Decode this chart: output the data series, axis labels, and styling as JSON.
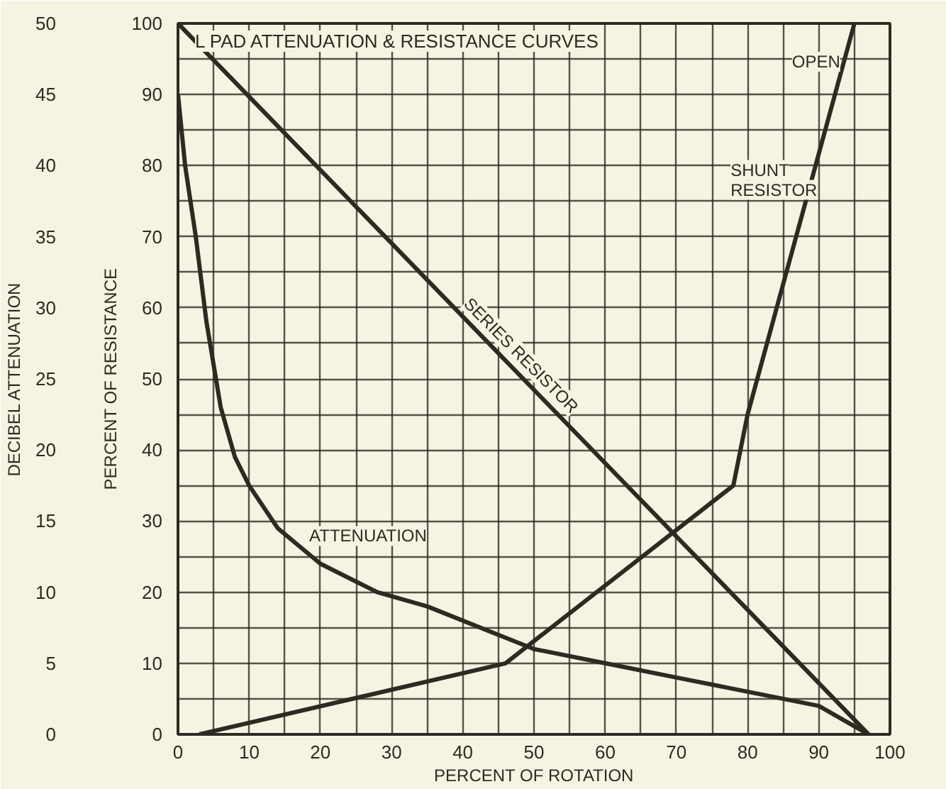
{
  "chart_data": {
    "type": "line",
    "title": "L PAD ATTENUATION & RESISTANCE CURVES",
    "xlabel": "PERCENT OF ROTATION",
    "ylabel": "PERCENT OF RESISTANCE",
    "y2label": "DECIBEL ATTENUATION",
    "xlim": [
      0,
      100
    ],
    "ylim": [
      0,
      100
    ],
    "y2lim": [
      0,
      50
    ],
    "xticks": [
      0,
      {
        "value": 5,
        "label": null
      },
      10,
      {
        "value": 15,
        "label": null
      },
      20,
      {
        "value": 25,
        "label": null
      },
      30,
      {
        "value": 35,
        "label": null
      },
      40,
      {
        "value": 45,
        "label": null
      },
      50,
      {
        "value": 55,
        "label": null
      },
      60,
      {
        "value": 65,
        "label": null
      },
      70,
      {
        "value": 75,
        "label": null
      },
      80,
      {
        "value": 85,
        "label": null
      },
      90,
      {
        "value": 95,
        "label": null
      },
      100
    ],
    "yticks": [
      0,
      {
        "value": 5,
        "label": null
      },
      10,
      {
        "value": 15,
        "label": null
      },
      20,
      {
        "value": 25,
        "label": null
      },
      30,
      {
        "value": 35,
        "label": null
      },
      40,
      {
        "value": 45,
        "label": null
      },
      50,
      {
        "value": 55,
        "label": null
      },
      60,
      {
        "value": 65,
        "label": null
      },
      70,
      {
        "value": 75,
        "label": null
      },
      80,
      {
        "value": 85,
        "label": null
      },
      90,
      {
        "value": 95,
        "label": null
      },
      100
    ],
    "y2ticks": [
      0,
      5,
      10,
      15,
      20,
      25,
      30,
      35,
      40,
      45,
      50
    ],
    "grid": true,
    "marker": "none",
    "line_style": "solid",
    "annotations": [
      {
        "text": "OPEN",
        "x": 95,
        "y": 100
      }
    ],
    "series": [
      {
        "name": "SERIES RESISTOR",
        "color": "#2b2b22",
        "x": [
          0,
          97
        ],
        "values": [
          100,
          0
        ]
      },
      {
        "name": "SHUNT RESISTOR",
        "color": "#2b2b22",
        "x": [
          3,
          46,
          78,
          80,
          95
        ],
        "values": [
          0,
          10,
          35,
          45,
          100
        ]
      },
      {
        "name": "ATTENUATION",
        "color": "#2b2b22",
        "axis": "y2",
        "x": [
          0,
          1,
          2.5,
          4,
          6,
          8,
          10,
          14,
          20,
          28,
          35,
          45,
          50,
          60,
          70,
          80,
          90,
          97
        ],
        "values": [
          45,
          40,
          35,
          29,
          23,
          19.5,
          17.5,
          14.5,
          12,
          10,
          9,
          7,
          6,
          5,
          4,
          3,
          2,
          0
        ]
      }
    ]
  }
}
